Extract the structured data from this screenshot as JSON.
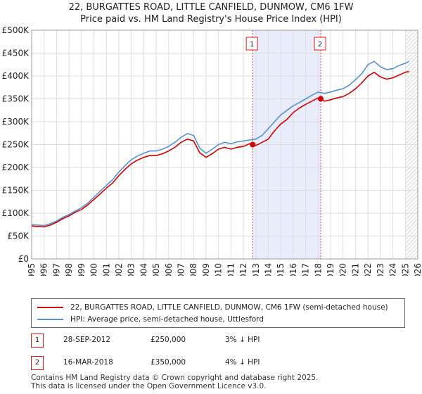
{
  "chart_data": {
    "type": "line",
    "title": "22, BURGATTES ROAD, LITTLE CANFIELD, DUNMOW, CM6 1FW",
    "subtitle": "Price paid vs. HM Land Registry's House Price Index (HPI)",
    "xlabel": "",
    "ylabel": "",
    "xlim": [
      1995,
      2026
    ],
    "ylim": [
      0,
      500000
    ],
    "y_ticks": [
      0,
      50000,
      100000,
      150000,
      200000,
      250000,
      300000,
      350000,
      400000,
      450000,
      500000
    ],
    "y_tick_labels": [
      "£0",
      "£50K",
      "£100K",
      "£150K",
      "£200K",
      "£250K",
      "£300K",
      "£350K",
      "£400K",
      "£450K",
      "£500K"
    ],
    "x_tick_labels": [
      "1995",
      "1996",
      "1997",
      "1998",
      "1999",
      "2000",
      "2001",
      "2002",
      "2003",
      "2004",
      "2005",
      "2006",
      "2007",
      "2008",
      "2009",
      "2010",
      "2011",
      "2012",
      "2013",
      "2014",
      "2015",
      "2016",
      "2017",
      "2018",
      "2019",
      "2020",
      "2021",
      "2022",
      "2023",
      "2024",
      "2025",
      "2026"
    ],
    "grid": true,
    "shaded_region": [
      2012.74,
      2018.21
    ],
    "forecast_start": 2025.0,
    "series": [
      {
        "name": "22, BURGATTES ROAD, LITTLE CANFIELD, DUNMOW, CM6 1FW (semi-detached house)",
        "color": "#cc0000",
        "x": [
          1995,
          1995.5,
          1996,
          1996.5,
          1997,
          1997.5,
          1998,
          1998.5,
          1999,
          1999.5,
          2000,
          2000.5,
          2001,
          2001.5,
          2002,
          2002.5,
          2003,
          2003.5,
          2004,
          2004.5,
          2005,
          2005.5,
          2006,
          2006.5,
          2007,
          2007.5,
          2008,
          2008.5,
          2009,
          2009.5,
          2010,
          2010.5,
          2011,
          2011.5,
          2012,
          2012.5,
          2012.74,
          2013,
          2013.5,
          2014,
          2014.5,
          2015,
          2015.5,
          2016,
          2016.5,
          2017,
          2017.5,
          2018,
          2018.21,
          2018.5,
          2019,
          2019.5,
          2020,
          2020.5,
          2021,
          2021.5,
          2022,
          2022.5,
          2023,
          2023.5,
          2024,
          2024.5,
          2025,
          2025.3
        ],
        "values": [
          72000,
          71000,
          70000,
          74000,
          80000,
          88000,
          94000,
          102000,
          108000,
          118000,
          130000,
          142000,
          155000,
          166000,
          182000,
          196000,
          208000,
          216000,
          222000,
          226000,
          226000,
          230000,
          236000,
          244000,
          255000,
          262000,
          258000,
          232000,
          222000,
          230000,
          240000,
          244000,
          240000,
          244000,
          246000,
          252000,
          250000,
          248000,
          255000,
          262000,
          280000,
          295000,
          305000,
          320000,
          330000,
          338000,
          345000,
          352000,
          350000,
          345000,
          348000,
          352000,
          355000,
          362000,
          372000,
          385000,
          400000,
          408000,
          398000,
          393000,
          396000,
          402000,
          408000,
          410000
        ]
      },
      {
        "name": "HPI: Average price, semi-detached house, Uttlesford",
        "color": "#5b8fd1",
        "x": [
          1995,
          1995.5,
          1996,
          1996.5,
          1997,
          1997.5,
          1998,
          1998.5,
          1999,
          1999.5,
          2000,
          2000.5,
          2001,
          2001.5,
          2002,
          2002.5,
          2003,
          2003.5,
          2004,
          2004.5,
          2005,
          2005.5,
          2006,
          2006.5,
          2007,
          2007.5,
          2008,
          2008.5,
          2009,
          2009.5,
          2010,
          2010.5,
          2011,
          2011.5,
          2012,
          2012.5,
          2013,
          2013.5,
          2014,
          2014.5,
          2015,
          2015.5,
          2016,
          2016.5,
          2017,
          2017.5,
          2018,
          2018.5,
          2019,
          2019.5,
          2020,
          2020.5,
          2021,
          2021.5,
          2022,
          2022.5,
          2023,
          2023.5,
          2024,
          2024.5,
          2025,
          2025.3
        ],
        "values": [
          75000,
          74000,
          73000,
          77000,
          83000,
          91000,
          97000,
          105000,
          112000,
          122000,
          135000,
          148000,
          161000,
          173000,
          190000,
          204000,
          217000,
          225000,
          231000,
          236000,
          236000,
          240000,
          246000,
          255000,
          266000,
          274000,
          270000,
          242000,
          231000,
          240000,
          250000,
          255000,
          252000,
          256000,
          258000,
          260000,
          262000,
          270000,
          285000,
          300000,
          315000,
          325000,
          335000,
          342000,
          350000,
          358000,
          365000,
          362000,
          365000,
          369000,
          372000,
          380000,
          392000,
          405000,
          425000,
          432000,
          420000,
          414000,
          416000,
          423000,
          428000,
          432000
        ]
      }
    ],
    "annotations": [
      {
        "label": "1",
        "x": 2012.74,
        "value": 250000
      },
      {
        "label": "2",
        "x": 2018.21,
        "value": 350000
      }
    ]
  },
  "legend": {
    "items": [
      {
        "label": "22, BURGATTES ROAD, LITTLE CANFIELD, DUNMOW, CM6 1FW (semi-detached house)",
        "color": "#cc0000"
      },
      {
        "label": "HPI: Average price, semi-detached house, Uttlesford",
        "color": "#5b8fd1"
      }
    ]
  },
  "transactions": [
    {
      "num": "1",
      "date": "28-SEP-2012",
      "price": "£250,000",
      "hpi": "3% ↓ HPI"
    },
    {
      "num": "2",
      "date": "16-MAR-2018",
      "price": "£350,000",
      "hpi": "4% ↓ HPI"
    }
  ],
  "footer": {
    "line1": "Contains HM Land Registry data © Crown copyright and database right 2025.",
    "line2": "This data is licensed under the Open Government Licence v3.0."
  }
}
